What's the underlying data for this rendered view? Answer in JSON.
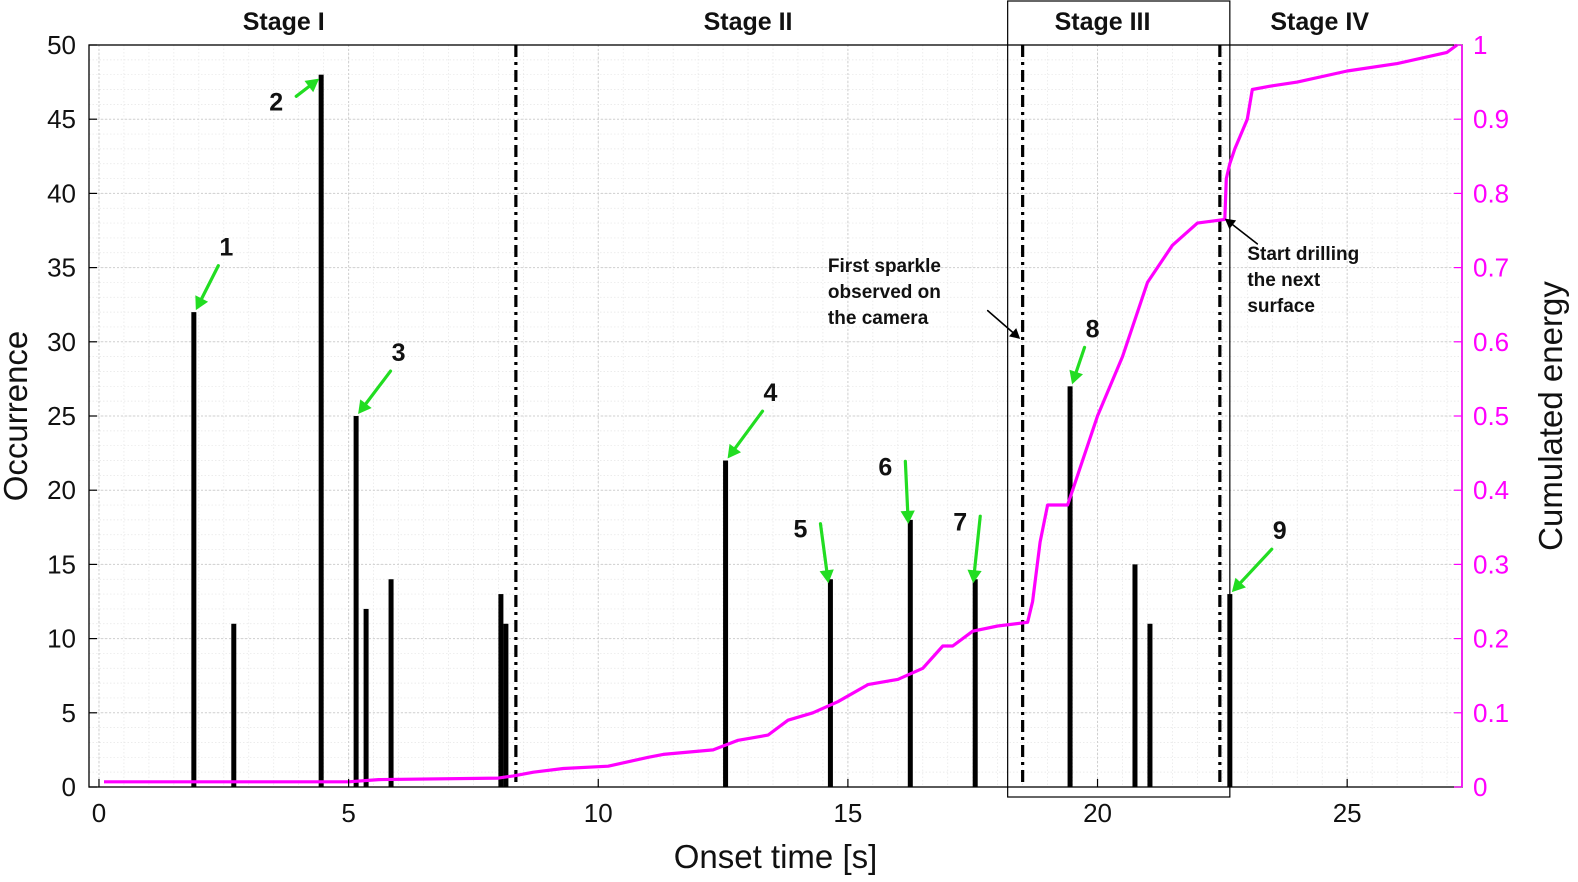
{
  "chart_data": {
    "type": "bar",
    "xlabel": "Onset time [s]",
    "ylabel": "Occurrence",
    "ylabel_right": "Cumulated energy",
    "xlim": [
      -0.2,
      27.3
    ],
    "ylim": [
      0,
      50
    ],
    "ylim_right": [
      0,
      1
    ],
    "x_ticks": [
      0,
      5,
      10,
      15,
      20,
      25
    ],
    "y_ticks": [
      0,
      5,
      10,
      15,
      20,
      25,
      30,
      35,
      40,
      45,
      50
    ],
    "y_ticks_right": [
      "0",
      "0.1",
      "0.2",
      "0.3",
      "0.4",
      "0.5",
      "0.6",
      "0.7",
      "0.8",
      "0.9",
      "1"
    ],
    "grid": true,
    "colors": {
      "bars": "#000000",
      "energy": "#ff00ff",
      "arrows": "#22dd22",
      "note_arrows": "#000000"
    },
    "series": [
      {
        "name": "Occurrence",
        "kind": "bar",
        "x": [
          1.9,
          2.7,
          4.45,
          5.15,
          5.35,
          5.85,
          8.05,
          8.15,
          12.55,
          14.65,
          16.25,
          17.55,
          19.45,
          20.75,
          21.05,
          22.65
        ],
        "values": [
          32,
          11,
          48,
          25,
          12,
          14,
          13,
          11,
          22,
          14,
          18,
          14,
          27,
          15,
          11,
          13
        ]
      },
      {
        "name": "Cumulated energy",
        "kind": "line",
        "axis": "right",
        "x": [
          0.1,
          5.0,
          5.6,
          8.0,
          8.3,
          8.7,
          9.3,
          10.2,
          11.0,
          11.3,
          12.3,
          12.8,
          13.4,
          13.8,
          14.3,
          14.8,
          15.4,
          16.0,
          16.5,
          16.9,
          17.1,
          17.5,
          18.0,
          18.6,
          18.7,
          18.85,
          19.0,
          19.4,
          19.55,
          20.0,
          20.5,
          21.0,
          21.5,
          22.0,
          22.55,
          22.58,
          22.65,
          22.75,
          23.0,
          23.1,
          23.5,
          24.0,
          25.0,
          26.0,
          27.0,
          27.2
        ],
        "values": [
          0.007,
          0.007,
          0.01,
          0.012,
          0.015,
          0.02,
          0.025,
          0.028,
          0.04,
          0.044,
          0.05,
          0.063,
          0.07,
          0.09,
          0.1,
          0.115,
          0.138,
          0.145,
          0.16,
          0.19,
          0.19,
          0.21,
          0.217,
          0.222,
          0.25,
          0.33,
          0.38,
          0.38,
          0.41,
          0.5,
          0.58,
          0.68,
          0.73,
          0.76,
          0.765,
          0.82,
          0.84,
          0.86,
          0.9,
          0.94,
          0.945,
          0.95,
          0.965,
          0.975,
          0.99,
          1.0
        ]
      }
    ],
    "stage_boundaries": [
      8.35,
      18.5,
      22.45
    ],
    "highlight_box": [
      18.2,
      22.65
    ],
    "stages": [
      {
        "label": "Stage I",
        "x": 3.7
      },
      {
        "label": "Stage II",
        "x": 13.0
      },
      {
        "label": "Stage III",
        "x": 20.1
      },
      {
        "label": "Stage IV",
        "x": 24.45
      }
    ],
    "events": [
      {
        "label": "1",
        "bar": 0,
        "lx": 2.55,
        "ly": 35.8
      },
      {
        "label": "2",
        "bar": 2,
        "lx": 3.55,
        "ly": 45.6
      },
      {
        "label": "3",
        "bar": 3,
        "lx": 6.0,
        "ly": 28.7
      },
      {
        "label": "4",
        "bar": 8,
        "lx": 13.45,
        "ly": 26.0
      },
      {
        "label": "5",
        "bar": 9,
        "lx": 14.05,
        "ly": 16.8
      },
      {
        "label": "6",
        "bar": 10,
        "lx": 15.75,
        "ly": 21.0
      },
      {
        "label": "7",
        "bar": 11,
        "lx": 17.25,
        "ly": 17.3
      },
      {
        "label": "8",
        "bar": 12,
        "lx": 19.9,
        "ly": 30.3
      },
      {
        "label": "9",
        "bar": 15,
        "lx": 23.65,
        "ly": 16.7
      }
    ],
    "annotations": [
      {
        "lines": [
          "First sparkle",
          "observed on",
          "the camera"
        ],
        "tx": 14.6,
        "ty": 34.7,
        "ax": 18.45,
        "ay": 30.2,
        "from_x": 17.8,
        "from_y": 32.1
      },
      {
        "lines": [
          "Start drilling",
          "the next",
          "surface"
        ],
        "tx": 23.0,
        "ty": 35.5,
        "ax": 22.55,
        "ay": 38.3,
        "from_x": 23.2,
        "from_y": 36.6
      }
    ]
  }
}
